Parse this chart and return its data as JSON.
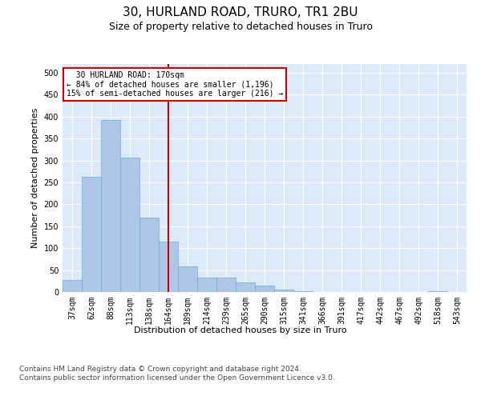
{
  "title": "30, HURLAND ROAD, TRURO, TR1 2BU",
  "subtitle": "Size of property relative to detached houses in Truro",
  "xlabel": "Distribution of detached houses by size in Truro",
  "ylabel": "Number of detached properties",
  "categories": [
    "37sqm",
    "62sqm",
    "88sqm",
    "113sqm",
    "138sqm",
    "164sqm",
    "189sqm",
    "214sqm",
    "239sqm",
    "265sqm",
    "290sqm",
    "315sqm",
    "341sqm",
    "366sqm",
    "391sqm",
    "417sqm",
    "442sqm",
    "467sqm",
    "492sqm",
    "518sqm",
    "543sqm"
  ],
  "values": [
    27,
    263,
    393,
    307,
    170,
    115,
    58,
    32,
    32,
    22,
    14,
    5,
    1,
    0,
    0,
    0,
    0,
    0,
    0,
    1,
    0
  ],
  "bar_color": "#aec6e8",
  "bar_edge_color": "#6aabd2",
  "vline_x": 5.0,
  "vline_color": "#cc0000",
  "annotation_text": "  30 HURLAND ROAD: 170sqm\n← 84% of detached houses are smaller (1,196)\n15% of semi-detached houses are larger (216) →",
  "annotation_box_color": "#ffffff",
  "annotation_box_edge": "#cc0000",
  "ylim": [
    0,
    520
  ],
  "yticks": [
    0,
    50,
    100,
    150,
    200,
    250,
    300,
    350,
    400,
    450,
    500
  ],
  "footer": "Contains HM Land Registry data © Crown copyright and database right 2024.\nContains public sector information licensed under the Open Government Licence v3.0.",
  "bg_color": "#dce9f8",
  "title_fontsize": 11,
  "subtitle_fontsize": 9,
  "axis_label_fontsize": 8,
  "tick_fontsize": 7,
  "footer_fontsize": 6.5
}
